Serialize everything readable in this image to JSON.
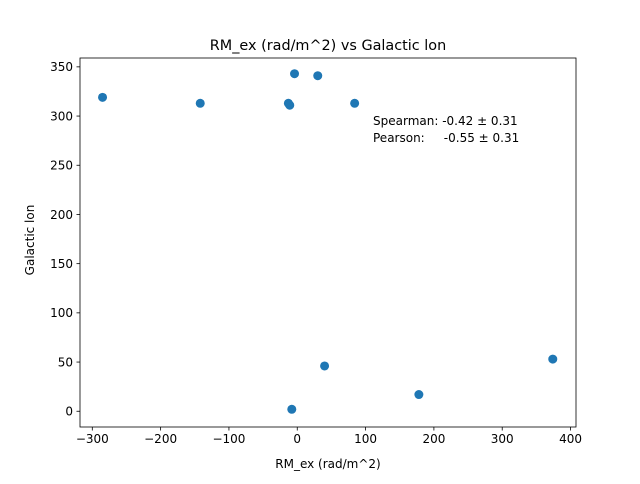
{
  "chart_data": {
    "type": "scatter",
    "title": "RM_ex (rad/m^2) vs Galactic lon",
    "xlabel": "RM_ex (rad/m^2)",
    "ylabel": "Galactic lon",
    "xlim": [
      -318,
      408
    ],
    "ylim": [
      -16,
      359
    ],
    "xticks": [
      -300,
      -200,
      -100,
      0,
      100,
      200,
      300,
      400
    ],
    "xtick_labels": [
      "−300",
      "−200",
      "−100",
      "0",
      "100",
      "200",
      "300",
      "400"
    ],
    "yticks": [
      0,
      50,
      100,
      150,
      200,
      250,
      300,
      350
    ],
    "ytick_labels": [
      "0",
      "50",
      "100",
      "150",
      "200",
      "250",
      "300",
      "350"
    ],
    "grid": false,
    "marker_color": "#1f77b4",
    "points": [
      {
        "x": -285,
        "y": 319
      },
      {
        "x": -142,
        "y": 313
      },
      {
        "x": -13,
        "y": 313
      },
      {
        "x": -11,
        "y": 311
      },
      {
        "x": -4,
        "y": 343
      },
      {
        "x": 30,
        "y": 341
      },
      {
        "x": 84,
        "y": 313
      },
      {
        "x": 40,
        "y": 46
      },
      {
        "x": -8,
        "y": 2
      },
      {
        "x": 178,
        "y": 17
      },
      {
        "x": 374,
        "y": 53
      }
    ],
    "annotations": [
      "Spearman: -0.42 ± 0.31",
      "Pearson:     -0.55 ± 0.31"
    ]
  }
}
